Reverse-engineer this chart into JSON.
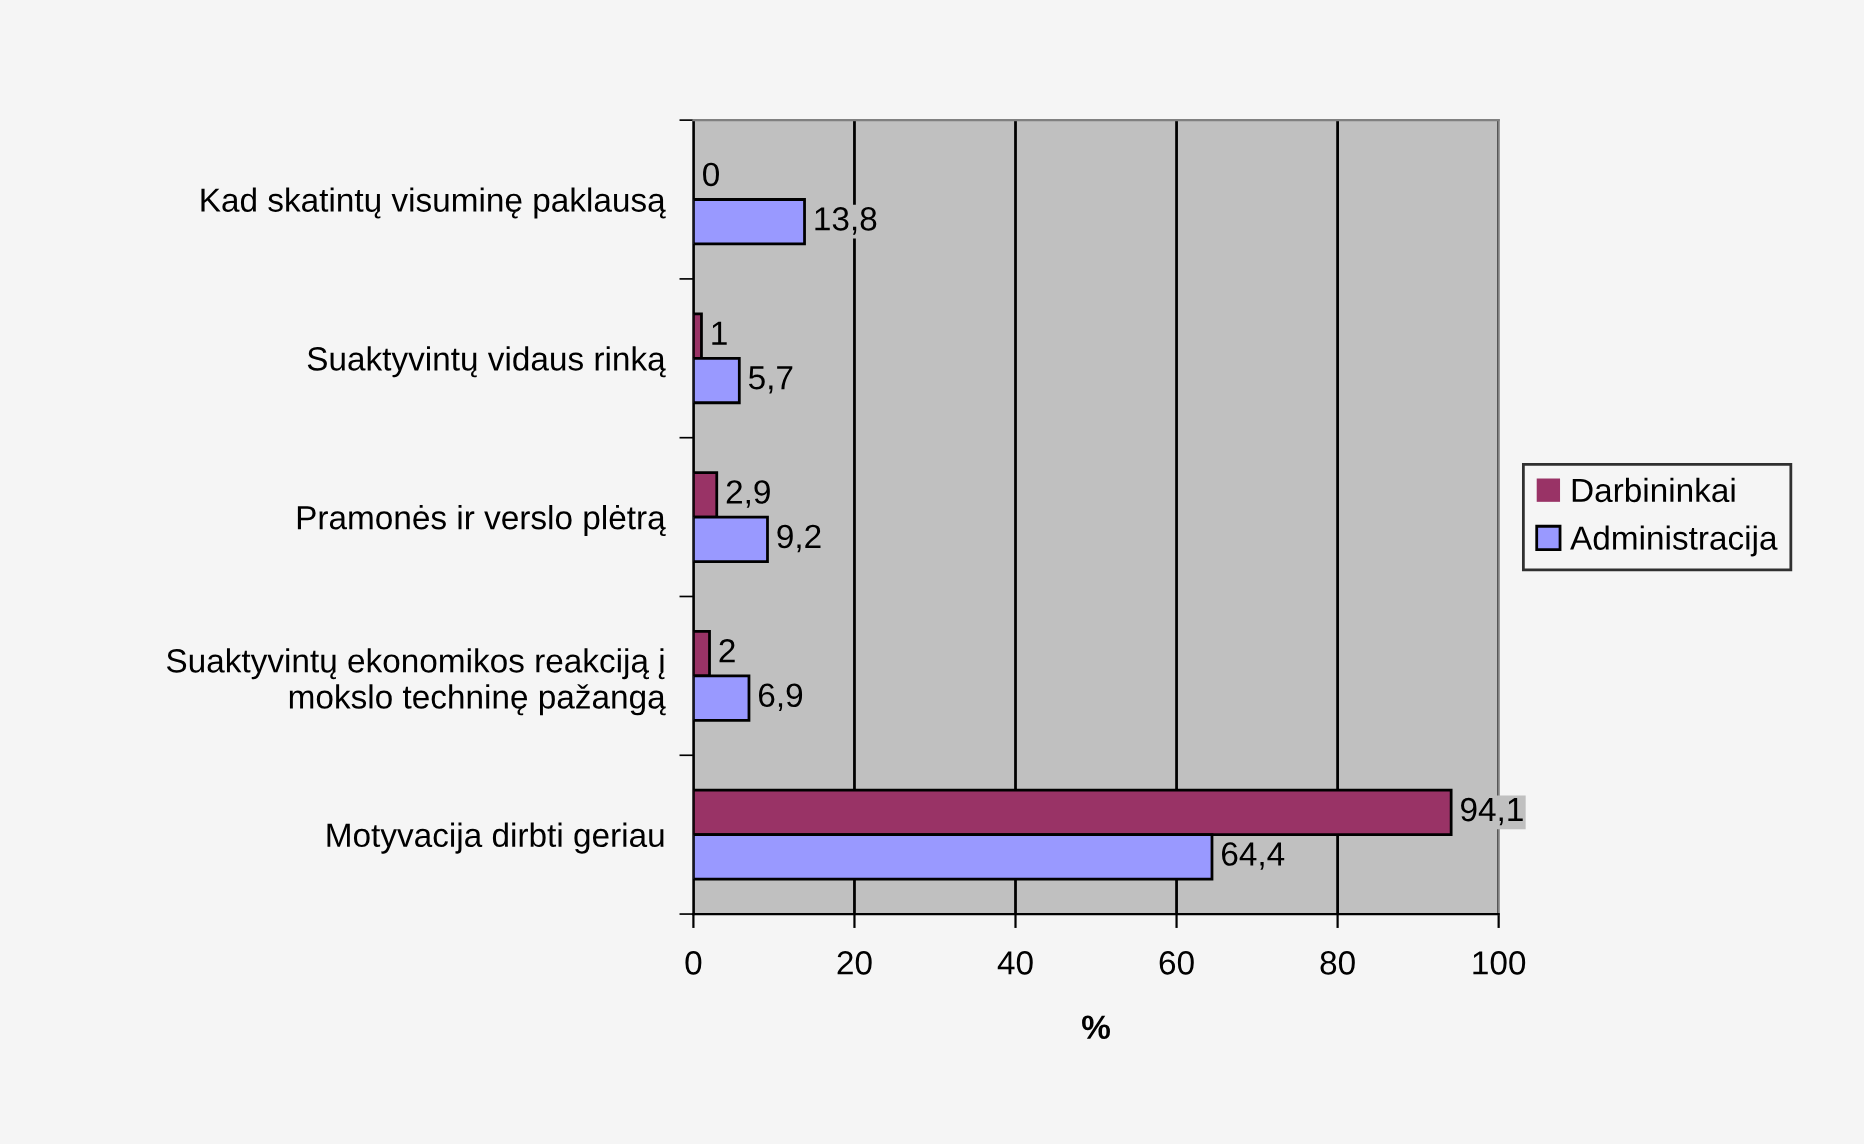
{
  "chart_data": {
    "type": "bar",
    "orientation": "horizontal",
    "xlabel": "%",
    "categories": [
      "Kad skatintų visuminę paklausą",
      "Suaktyvintų vidaus rinką",
      "Pramonės ir verslo plėtrą",
      "Suaktyvintų ekonomikos reakciją į\nmokslo techninę pažangą",
      "Motyvacija dirbti geriau"
    ],
    "series": [
      {
        "name": "Darbininkai",
        "color": "#993366",
        "values": [
          0,
          1,
          2.9,
          2,
          94.1
        ],
        "value_labels": [
          "0",
          "1",
          "2,9",
          "2",
          "94,1"
        ]
      },
      {
        "name": "Administracija",
        "color": "#9999ff",
        "values": [
          13.8,
          5.7,
          9.2,
          6.9,
          64.4
        ],
        "value_labels": [
          "13,8",
          "5,7",
          "9,2",
          "6,9",
          "64,4"
        ]
      }
    ],
    "xlim": [
      0,
      100
    ],
    "xticks": [
      0,
      20,
      40,
      60,
      80,
      100
    ],
    "grid": "x",
    "legend": "right"
  }
}
